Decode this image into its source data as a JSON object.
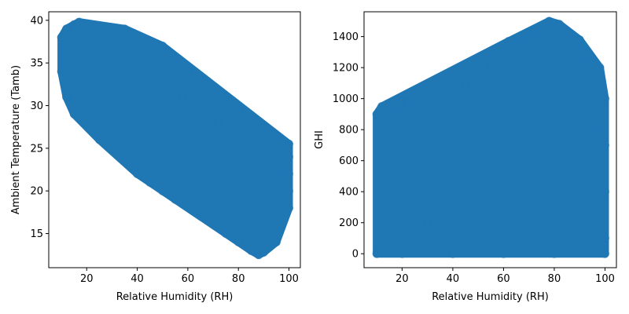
{
  "chart_data": [
    {
      "type": "scatter",
      "xlabel": "Relative Humidity (RH)",
      "ylabel": "Ambient Temperature (Tamb)",
      "xlim": [
        5,
        104.5
      ],
      "ylim": [
        11,
        41
      ],
      "xticks": [
        20,
        40,
        60,
        80,
        100
      ],
      "yticks": [
        15,
        20,
        25,
        30,
        35,
        40
      ],
      "color": "#1f77b4",
      "series": [
        {
          "points": [
            [
              10,
              38
            ],
            [
              12,
              39
            ],
            [
              15,
              39.5
            ],
            [
              17,
              39.8
            ],
            [
              20,
              38.5
            ],
            [
              25,
              37.8
            ],
            [
              30,
              37.5
            ],
            [
              35,
              39
            ],
            [
              40,
              37
            ],
            [
              45,
              37.5
            ],
            [
              50,
              37
            ],
            [
              55,
              35.5
            ],
            [
              60,
              34
            ],
            [
              65,
              33
            ],
            [
              70,
              32
            ],
            [
              75,
              31
            ],
            [
              80,
              29.5
            ],
            [
              85,
              28.5
            ],
            [
              90,
              27.5
            ],
            [
              95,
              26.5
            ],
            [
              100,
              25.5
            ],
            [
              10,
              34
            ],
            [
              12,
              31
            ],
            [
              15,
              29
            ],
            [
              20,
              28
            ],
            [
              25,
              26
            ],
            [
              30,
              25
            ],
            [
              35,
              24
            ],
            [
              40,
              22
            ],
            [
              45,
              21
            ],
            [
              50,
              20
            ],
            [
              55,
              19
            ],
            [
              60,
              18.5
            ],
            [
              65,
              17.5
            ],
            [
              70,
              16.5
            ],
            [
              75,
              15
            ],
            [
              80,
              14
            ],
            [
              85,
              13
            ],
            [
              88,
              12.5
            ],
            [
              90,
              12.8
            ],
            [
              95,
              14
            ],
            [
              100,
              18
            ],
            [
              100,
              20
            ],
            [
              100,
              22
            ],
            [
              100,
              24
            ],
            [
              25,
              35
            ],
            [
              30,
              33
            ],
            [
              40,
              31
            ],
            [
              50,
              29
            ],
            [
              60,
              27
            ],
            [
              70,
              25
            ],
            [
              80,
              23
            ],
            [
              90,
              21
            ],
            [
              20,
              32
            ],
            [
              35,
              28
            ],
            [
              45,
              26
            ],
            [
              55,
              24
            ],
            [
              65,
              22
            ],
            [
              75,
              20
            ],
            [
              85,
              18
            ],
            [
              95,
              16.5
            ],
            [
              15,
              36
            ],
            [
              28,
              34
            ],
            [
              42,
              33
            ],
            [
              58,
              31
            ],
            [
              72,
              28
            ],
            [
              88,
              25
            ],
            [
              97,
              22
            ],
            [
              60,
              22.5
            ],
            [
              75,
              25.5
            ]
          ]
        }
      ]
    },
    {
      "type": "scatter",
      "xlabel": "Relative Humidity (RH)",
      "ylabel": "GHI",
      "xlim": [
        5,
        104.5
      ],
      "ylim": [
        -90,
        1560
      ],
      "xticks": [
        20,
        40,
        60,
        80,
        100
      ],
      "yticks": [
        0,
        200,
        400,
        600,
        800,
        1000,
        1200,
        1400
      ],
      "color": "#1f77b4",
      "series": [
        {
          "points": [
            [
              10,
              0
            ],
            [
              10,
              900
            ],
            [
              12,
              950
            ],
            [
              15,
              960
            ],
            [
              18,
              920
            ],
            [
              20,
              950
            ],
            [
              22,
              970
            ],
            [
              25,
              980
            ],
            [
              27,
              1060
            ],
            [
              30,
              1000
            ],
            [
              32,
              1040
            ],
            [
              35,
              1050
            ],
            [
              38,
              1010
            ],
            [
              40,
              1020
            ],
            [
              42,
              1040
            ],
            [
              45,
              1090
            ],
            [
              48,
              1100
            ],
            [
              50,
              1120
            ],
            [
              52,
              1150
            ],
            [
              55,
              1210
            ],
            [
              58,
              1240
            ],
            [
              60,
              1270
            ],
            [
              62,
              1370
            ],
            [
              64,
              1380
            ],
            [
              66,
              1340
            ],
            [
              68,
              1380
            ],
            [
              70,
              1420
            ],
            [
              72,
              1430
            ],
            [
              74,
              1400
            ],
            [
              76,
              1420
            ],
            [
              78,
              1500
            ],
            [
              80,
              1400
            ],
            [
              82,
              1480
            ],
            [
              84,
              1440
            ],
            [
              86,
              1380
            ],
            [
              88,
              1320
            ],
            [
              90,
              1380
            ],
            [
              92,
              1240
            ],
            [
              95,
              1260
            ],
            [
              98,
              1200
            ],
            [
              100,
              1000
            ],
            [
              100,
              700
            ],
            [
              100,
              400
            ],
            [
              100,
              100
            ],
            [
              100,
              0
            ],
            [
              20,
              0
            ],
            [
              40,
              0
            ],
            [
              60,
              0
            ],
            [
              80,
              0
            ],
            [
              15,
              300
            ],
            [
              15,
              600
            ],
            [
              30,
              200
            ],
            [
              30,
              500
            ],
            [
              30,
              800
            ],
            [
              50,
              300
            ],
            [
              50,
              700
            ],
            [
              70,
              500
            ],
            [
              70,
              900
            ],
            [
              70,
              1200
            ],
            [
              90,
              600
            ],
            [
              90,
              1000
            ],
            [
              95,
              300
            ],
            [
              60,
              1000
            ],
            [
              80,
              1300
            ],
            [
              25,
              700
            ],
            [
              45,
              850
            ],
            [
              85,
              900
            ],
            [
              55,
              550
            ],
            [
              12,
              150
            ],
            [
              96,
              800
            ]
          ]
        }
      ]
    }
  ]
}
